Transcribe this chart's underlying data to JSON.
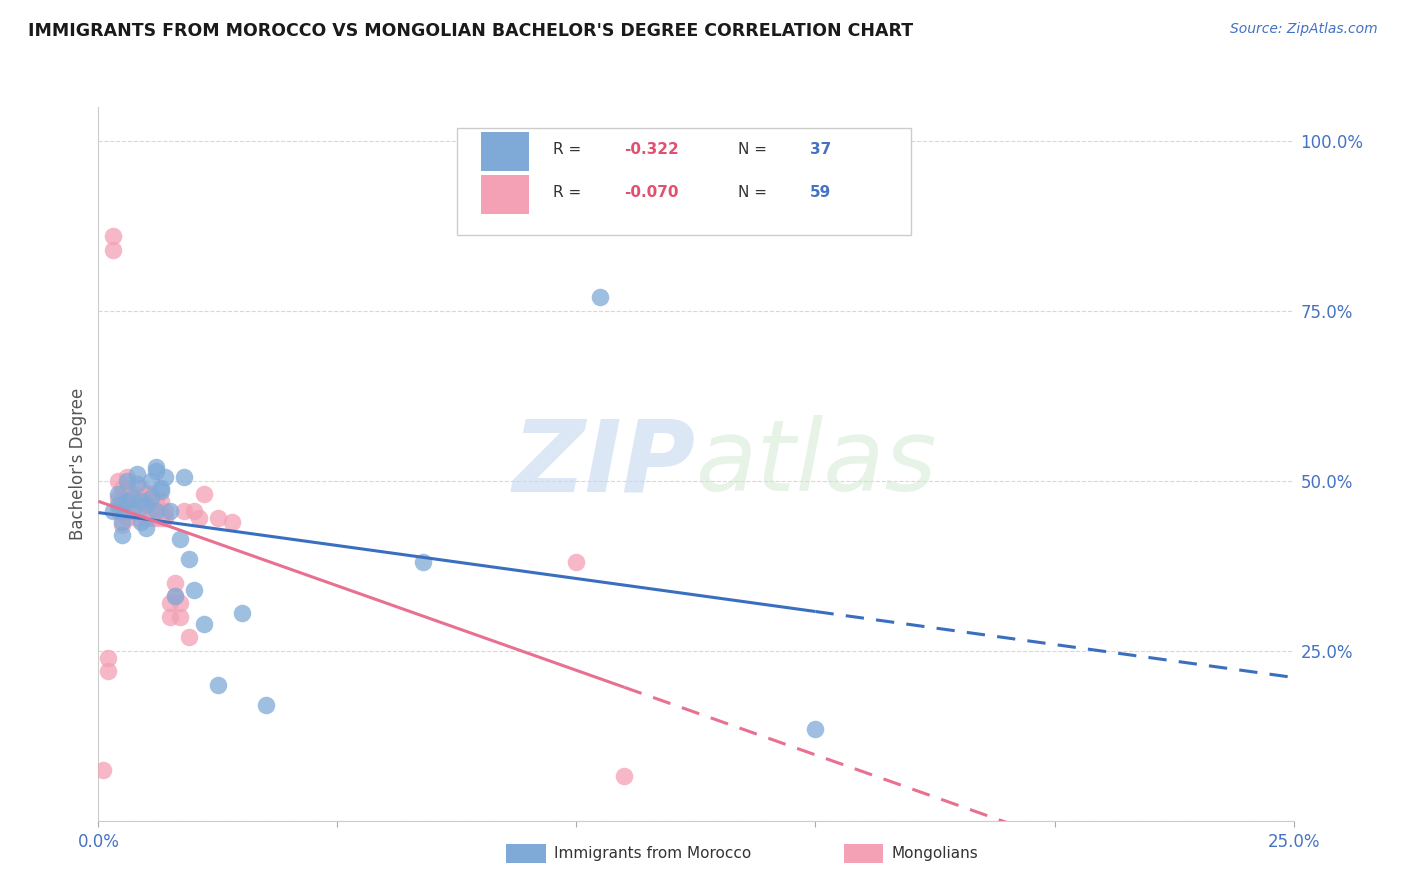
{
  "title": "IMMIGRANTS FROM MOROCCO VS MONGOLIAN BACHELOR'S DEGREE CORRELATION CHART",
  "source": "Source: ZipAtlas.com",
  "ylabel": "Bachelor's Degree",
  "xlim": [
    0.0,
    0.25
  ],
  "ylim": [
    0.0,
    1.05
  ],
  "yticks": [
    0.0,
    0.25,
    0.5,
    0.75,
    1.0
  ],
  "ytick_labels": [
    "",
    "25.0%",
    "50.0%",
    "75.0%",
    "100.0%"
  ],
  "xticks": [
    0.0,
    0.05,
    0.1,
    0.15,
    0.2,
    0.25
  ],
  "xtick_labels": [
    "0.0%",
    "",
    "",
    "",
    "",
    "25.0%"
  ],
  "blue_color": "#7faad8",
  "pink_color": "#f4a0b5",
  "blue_line_color": "#3a6fbf",
  "pink_line_color": "#e87090",
  "watermark_zip": "ZIP",
  "watermark_atlas": "atlas",
  "blue_x": [
    0.003,
    0.004,
    0.004,
    0.005,
    0.005,
    0.005,
    0.006,
    0.006,
    0.007,
    0.007,
    0.008,
    0.008,
    0.009,
    0.009,
    0.01,
    0.01,
    0.011,
    0.011,
    0.012,
    0.012,
    0.012,
    0.013,
    0.013,
    0.014,
    0.015,
    0.016,
    0.017,
    0.018,
    0.019,
    0.02,
    0.022,
    0.025,
    0.03,
    0.035,
    0.068,
    0.105,
    0.15
  ],
  "blue_y": [
    0.455,
    0.465,
    0.48,
    0.44,
    0.455,
    0.42,
    0.47,
    0.5,
    0.475,
    0.455,
    0.495,
    0.51,
    0.47,
    0.44,
    0.43,
    0.465,
    0.5,
    0.475,
    0.455,
    0.515,
    0.52,
    0.485,
    0.49,
    0.505,
    0.455,
    0.33,
    0.415,
    0.505,
    0.385,
    0.34,
    0.29,
    0.2,
    0.305,
    0.17,
    0.38,
    0.77,
    0.135
  ],
  "pink_x": [
    0.001,
    0.002,
    0.002,
    0.003,
    0.003,
    0.004,
    0.004,
    0.004,
    0.005,
    0.005,
    0.005,
    0.005,
    0.006,
    0.006,
    0.006,
    0.006,
    0.006,
    0.007,
    0.007,
    0.007,
    0.007,
    0.008,
    0.008,
    0.008,
    0.009,
    0.009,
    0.009,
    0.009,
    0.01,
    0.01,
    0.01,
    0.01,
    0.011,
    0.011,
    0.011,
    0.011,
    0.012,
    0.012,
    0.012,
    0.013,
    0.013,
    0.013,
    0.014,
    0.014,
    0.015,
    0.015,
    0.016,
    0.016,
    0.017,
    0.017,
    0.018,
    0.019,
    0.02,
    0.021,
    0.022,
    0.025,
    0.028,
    0.1,
    0.11
  ],
  "pink_y": [
    0.075,
    0.22,
    0.24,
    0.84,
    0.86,
    0.455,
    0.475,
    0.5,
    0.435,
    0.455,
    0.475,
    0.49,
    0.445,
    0.455,
    0.47,
    0.49,
    0.505,
    0.455,
    0.465,
    0.47,
    0.48,
    0.445,
    0.46,
    0.475,
    0.455,
    0.465,
    0.475,
    0.49,
    0.445,
    0.455,
    0.47,
    0.48,
    0.445,
    0.455,
    0.47,
    0.48,
    0.445,
    0.455,
    0.47,
    0.445,
    0.455,
    0.47,
    0.445,
    0.455,
    0.3,
    0.32,
    0.33,
    0.35,
    0.3,
    0.32,
    0.455,
    0.27,
    0.455,
    0.445,
    0.48,
    0.445,
    0.44,
    0.38,
    0.065
  ],
  "background_color": "#ffffff",
  "grid_color": "#d8d8d8",
  "title_color": "#1a1a1a",
  "source_color": "#4472c4",
  "ytick_color": "#4472c4",
  "xtick_color": "#4472c4",
  "ylabel_color": "#555555",
  "legend_text_color": "#333333",
  "legend_R_color": "#e05070",
  "legend_N_color": "#4472c4"
}
